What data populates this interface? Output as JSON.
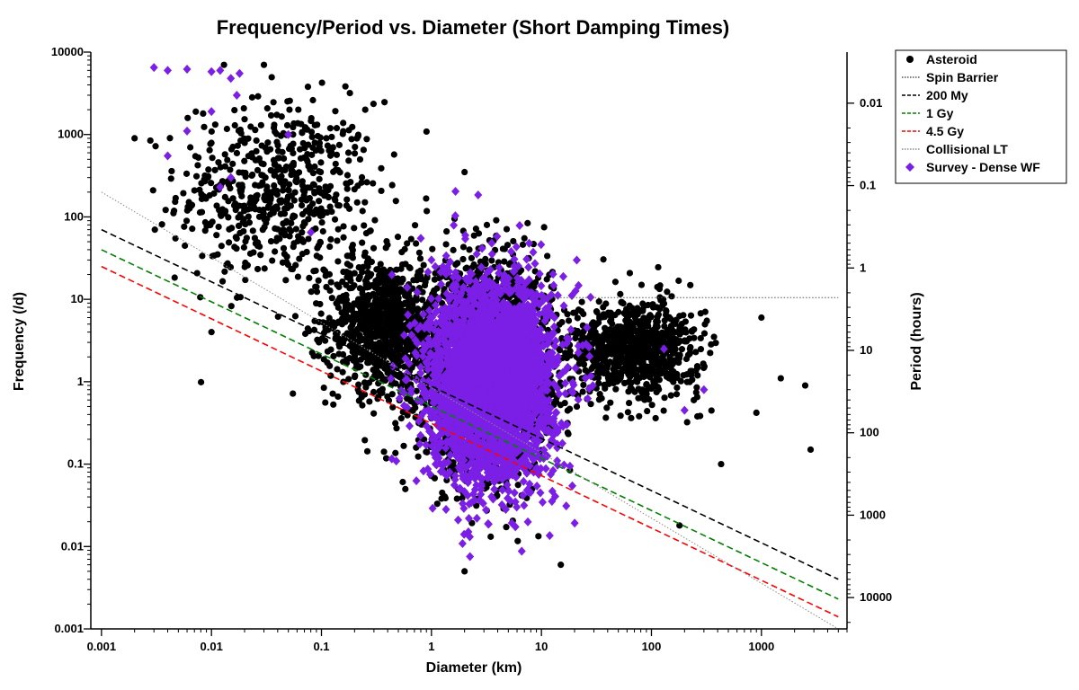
{
  "chart_data": {
    "type": "scatter",
    "title": "Frequency/Period vs. Diameter (Short Damping Times)",
    "xlabel": "Diameter (km)",
    "ylabel": "Frequency (/d)",
    "y2label": "Period (hours)",
    "x_scale": "log",
    "y_scale": "log",
    "xlim": [
      0.0008,
      6000
    ],
    "ylim": [
      0.001,
      10000
    ],
    "x_ticks": [
      "0.001",
      "0.01",
      "0.1",
      "1",
      "10",
      "100",
      "1000"
    ],
    "y_ticks": [
      "0.001",
      "0.01",
      "0.1",
      "1",
      "10",
      "100",
      "1000",
      "10000"
    ],
    "y2_ticks": [
      "0.01",
      "0.1",
      "1",
      "10",
      "100",
      "1000",
      "10000"
    ],
    "grid": false,
    "legend_position": "top-right",
    "legend": [
      {
        "label": "Asteroid",
        "marker": "circle",
        "color": "#000000"
      },
      {
        "label": "Spin Barrier",
        "style": "dotted",
        "color": "#555555"
      },
      {
        "label": "200 My",
        "style": "dashed",
        "color": "#000000"
      },
      {
        "label": "1 Gy",
        "style": "dashed",
        "color": "#008000"
      },
      {
        "label": "4.5 Gy",
        "style": "dashed",
        "color": "#ff0000"
      },
      {
        "label": "Collisional LT",
        "style": "dotted",
        "color": "#888888"
      },
      {
        "label": "Survey - Dense WF",
        "marker": "diamond",
        "color": "#7b1fe6"
      }
    ],
    "lines": [
      {
        "name": "Spin Barrier",
        "x": [
          10,
          5000
        ],
        "y": [
          10.5,
          10.5
        ]
      },
      {
        "name": "200 My",
        "x": [
          0.001,
          5000
        ],
        "y": [
          70,
          0.004
        ]
      },
      {
        "name": "1 Gy",
        "x": [
          0.001,
          5000
        ],
        "y": [
          40,
          0.0023
        ]
      },
      {
        "name": "4.5 Gy",
        "x": [
          0.001,
          5000
        ],
        "y": [
          25,
          0.0014
        ]
      },
      {
        "name": "Collisional LT",
        "x": [
          0.001,
          5000
        ],
        "y": [
          200,
          0.001
        ]
      }
    ],
    "series": [
      {
        "name": "Asteroid",
        "marker": "circle",
        "color": "#000000",
        "clusters": [
          {
            "count": 600,
            "x_center": 0.04,
            "x_spread": 0.45,
            "y_center": 200,
            "y_spread": 0.55
          },
          {
            "count": 900,
            "x_center": 0.35,
            "x_spread": 0.25,
            "y_center": 5,
            "y_spread": 0.4
          },
          {
            "count": 2500,
            "x_center": 3,
            "x_spread": 0.3,
            "y_center": 1.5,
            "y_spread": 0.6
          },
          {
            "count": 800,
            "x_center": 70,
            "x_spread": 0.3,
            "y_center": 2.5,
            "y_spread": 0.3
          }
        ],
        "points": [
          {
            "x": 0.002,
            "y": 900
          },
          {
            "x": 0.013,
            "y": 7000
          },
          {
            "x": 0.03,
            "y": 7000
          },
          {
            "x": 0.25,
            "y": 2000
          },
          {
            "x": 2,
            "y": 350
          },
          {
            "x": 7,
            "y": 55
          },
          {
            "x": 1000,
            "y": 6
          },
          {
            "x": 1500,
            "y": 1.1
          },
          {
            "x": 2500,
            "y": 0.9
          },
          {
            "x": 2800,
            "y": 0.15
          },
          {
            "x": 900,
            "y": 0.42
          },
          {
            "x": 430,
            "y": 0.1
          },
          {
            "x": 180,
            "y": 0.018
          },
          {
            "x": 2,
            "y": 0.005
          },
          {
            "x": 15,
            "y": 0.006
          },
          {
            "x": 0.01,
            "y": 4
          }
        ]
      },
      {
        "name": "Survey - Dense WF",
        "marker": "diamond",
        "color": "#7b1fe6",
        "clusters": [
          {
            "count": 3500,
            "x_center": 3.5,
            "x_spread": 0.28,
            "y_center": 1.0,
            "y_spread": 0.6
          }
        ],
        "points": [
          {
            "x": 0.003,
            "y": 6500
          },
          {
            "x": 0.004,
            "y": 6000
          },
          {
            "x": 0.006,
            "y": 6200
          },
          {
            "x": 0.01,
            "y": 5800
          },
          {
            "x": 0.012,
            "y": 6000
          },
          {
            "x": 0.015,
            "y": 4800
          },
          {
            "x": 0.018,
            "y": 5500
          },
          {
            "x": 0.017,
            "y": 3000
          },
          {
            "x": 0.01,
            "y": 1900
          },
          {
            "x": 0.006,
            "y": 1100
          },
          {
            "x": 0.004,
            "y": 550
          },
          {
            "x": 0.015,
            "y": 300
          },
          {
            "x": 0.012,
            "y": 230
          },
          {
            "x": 0.05,
            "y": 1000
          },
          {
            "x": 0.08,
            "y": 65
          },
          {
            "x": 0.8,
            "y": 55
          },
          {
            "x": 1.0,
            "y": 30
          },
          {
            "x": 300,
            "y": 0.8
          },
          {
            "x": 200,
            "y": 0.45
          },
          {
            "x": 130,
            "y": 2.5
          }
        ]
      }
    ]
  }
}
